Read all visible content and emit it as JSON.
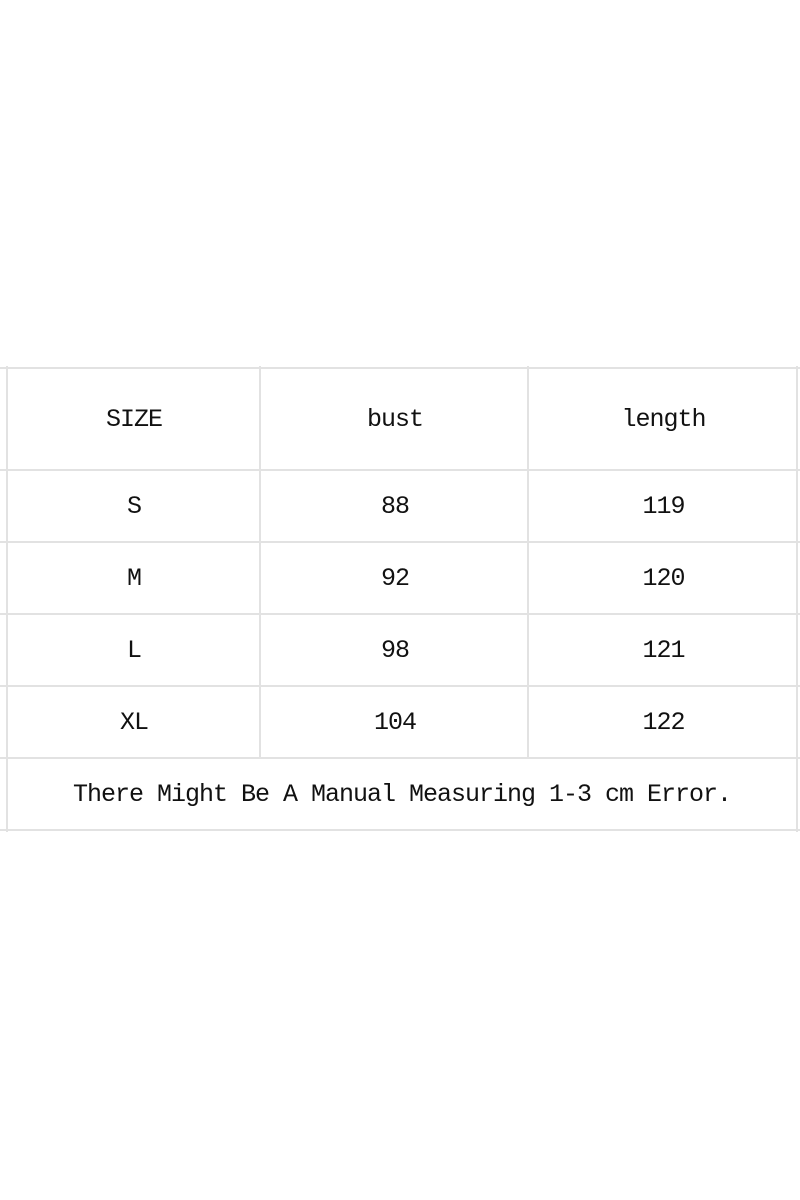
{
  "table": {
    "headers": [
      "SIZE",
      "bust",
      "length"
    ],
    "rows": [
      [
        "S",
        "88",
        "119"
      ],
      [
        "M",
        "92",
        "120"
      ],
      [
        "L",
        "98",
        "121"
      ],
      [
        "XL",
        "104",
        "122"
      ]
    ],
    "note": "There Might Be A Manual Measuring 1-3 cm Error."
  }
}
